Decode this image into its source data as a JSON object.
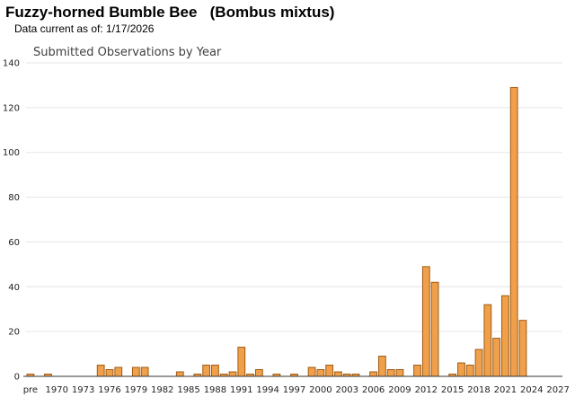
{
  "header": {
    "title": "Fuzzy-horned Bumble Bee   (Bombus mixtus)",
    "subtitle": "Data current as of: 1/17/2026"
  },
  "colors": {
    "bar_fill": "#f0a04b",
    "bar_stroke": "#a05a10",
    "grid": "#e6e6e6",
    "axis": "#333333"
  },
  "chart_data": {
    "type": "bar",
    "title": "Submitted Observations by Year",
    "xlabel": "",
    "ylabel": "",
    "ylim": [
      0,
      140
    ],
    "yticks": [
      0,
      20,
      40,
      60,
      80,
      100,
      120,
      140
    ],
    "grid": true,
    "legend": "none",
    "categories": [
      "pre",
      "1968",
      "1969",
      "1970",
      "1971",
      "1972",
      "1973",
      "1974",
      "1975",
      "1976",
      "1977",
      "1978",
      "1979",
      "1980",
      "1981",
      "1982",
      "1983",
      "1984",
      "1985",
      "1986",
      "1987",
      "1988",
      "1989",
      "1990",
      "1991",
      "1992",
      "1993",
      "1994",
      "1995",
      "1996",
      "1997",
      "1998",
      "1999",
      "2000",
      "2001",
      "2002",
      "2003",
      "2004",
      "2005",
      "2006",
      "2007",
      "2008",
      "2009",
      "2010",
      "2011",
      "2012",
      "2013",
      "2014",
      "2015",
      "2016",
      "2017",
      "2018",
      "2019",
      "2020",
      "2021",
      "2022",
      "2023",
      "2024",
      "2025",
      "2026",
      "2027"
    ],
    "values": [
      1,
      0,
      1,
      0,
      0,
      0,
      0,
      0,
      5,
      3,
      4,
      0,
      4,
      4,
      0,
      0,
      0,
      2,
      0,
      1,
      5,
      5,
      1,
      2,
      13,
      1,
      3,
      0,
      1,
      0,
      1,
      0,
      4,
      3,
      5,
      2,
      1,
      1,
      0,
      2,
      9,
      3,
      3,
      0,
      5,
      49,
      42,
      0,
      1,
      6,
      5,
      12,
      32,
      17,
      36,
      129,
      25,
      0,
      0,
      0,
      0
    ],
    "xtick_labels": [
      "pre",
      "1970",
      "1973",
      "1976",
      "1979",
      "1982",
      "1985",
      "1988",
      "1991",
      "1994",
      "1997",
      "2000",
      "2003",
      "2006",
      "2009",
      "2012",
      "2015",
      "2018",
      "2021",
      "2024",
      "2027"
    ]
  }
}
